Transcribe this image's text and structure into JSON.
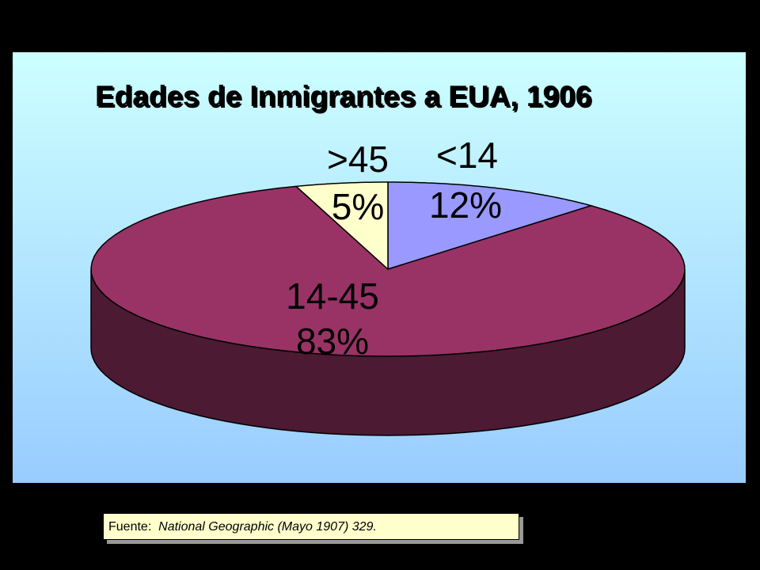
{
  "chart_data": {
    "type": "pie",
    "title": "Edades de Inmigrantes a EUA, 1906",
    "categories": [
      "<14",
      "14-45",
      ">45"
    ],
    "values": [
      12,
      83,
      5
    ],
    "value_labels": [
      "12%",
      "83%",
      "5%"
    ],
    "colors": [
      "#9999ff",
      "#993366",
      "#ffffcc"
    ]
  },
  "source": {
    "label": "Fuente:",
    "text": "National Geographic (Mayo 1907) 329."
  }
}
